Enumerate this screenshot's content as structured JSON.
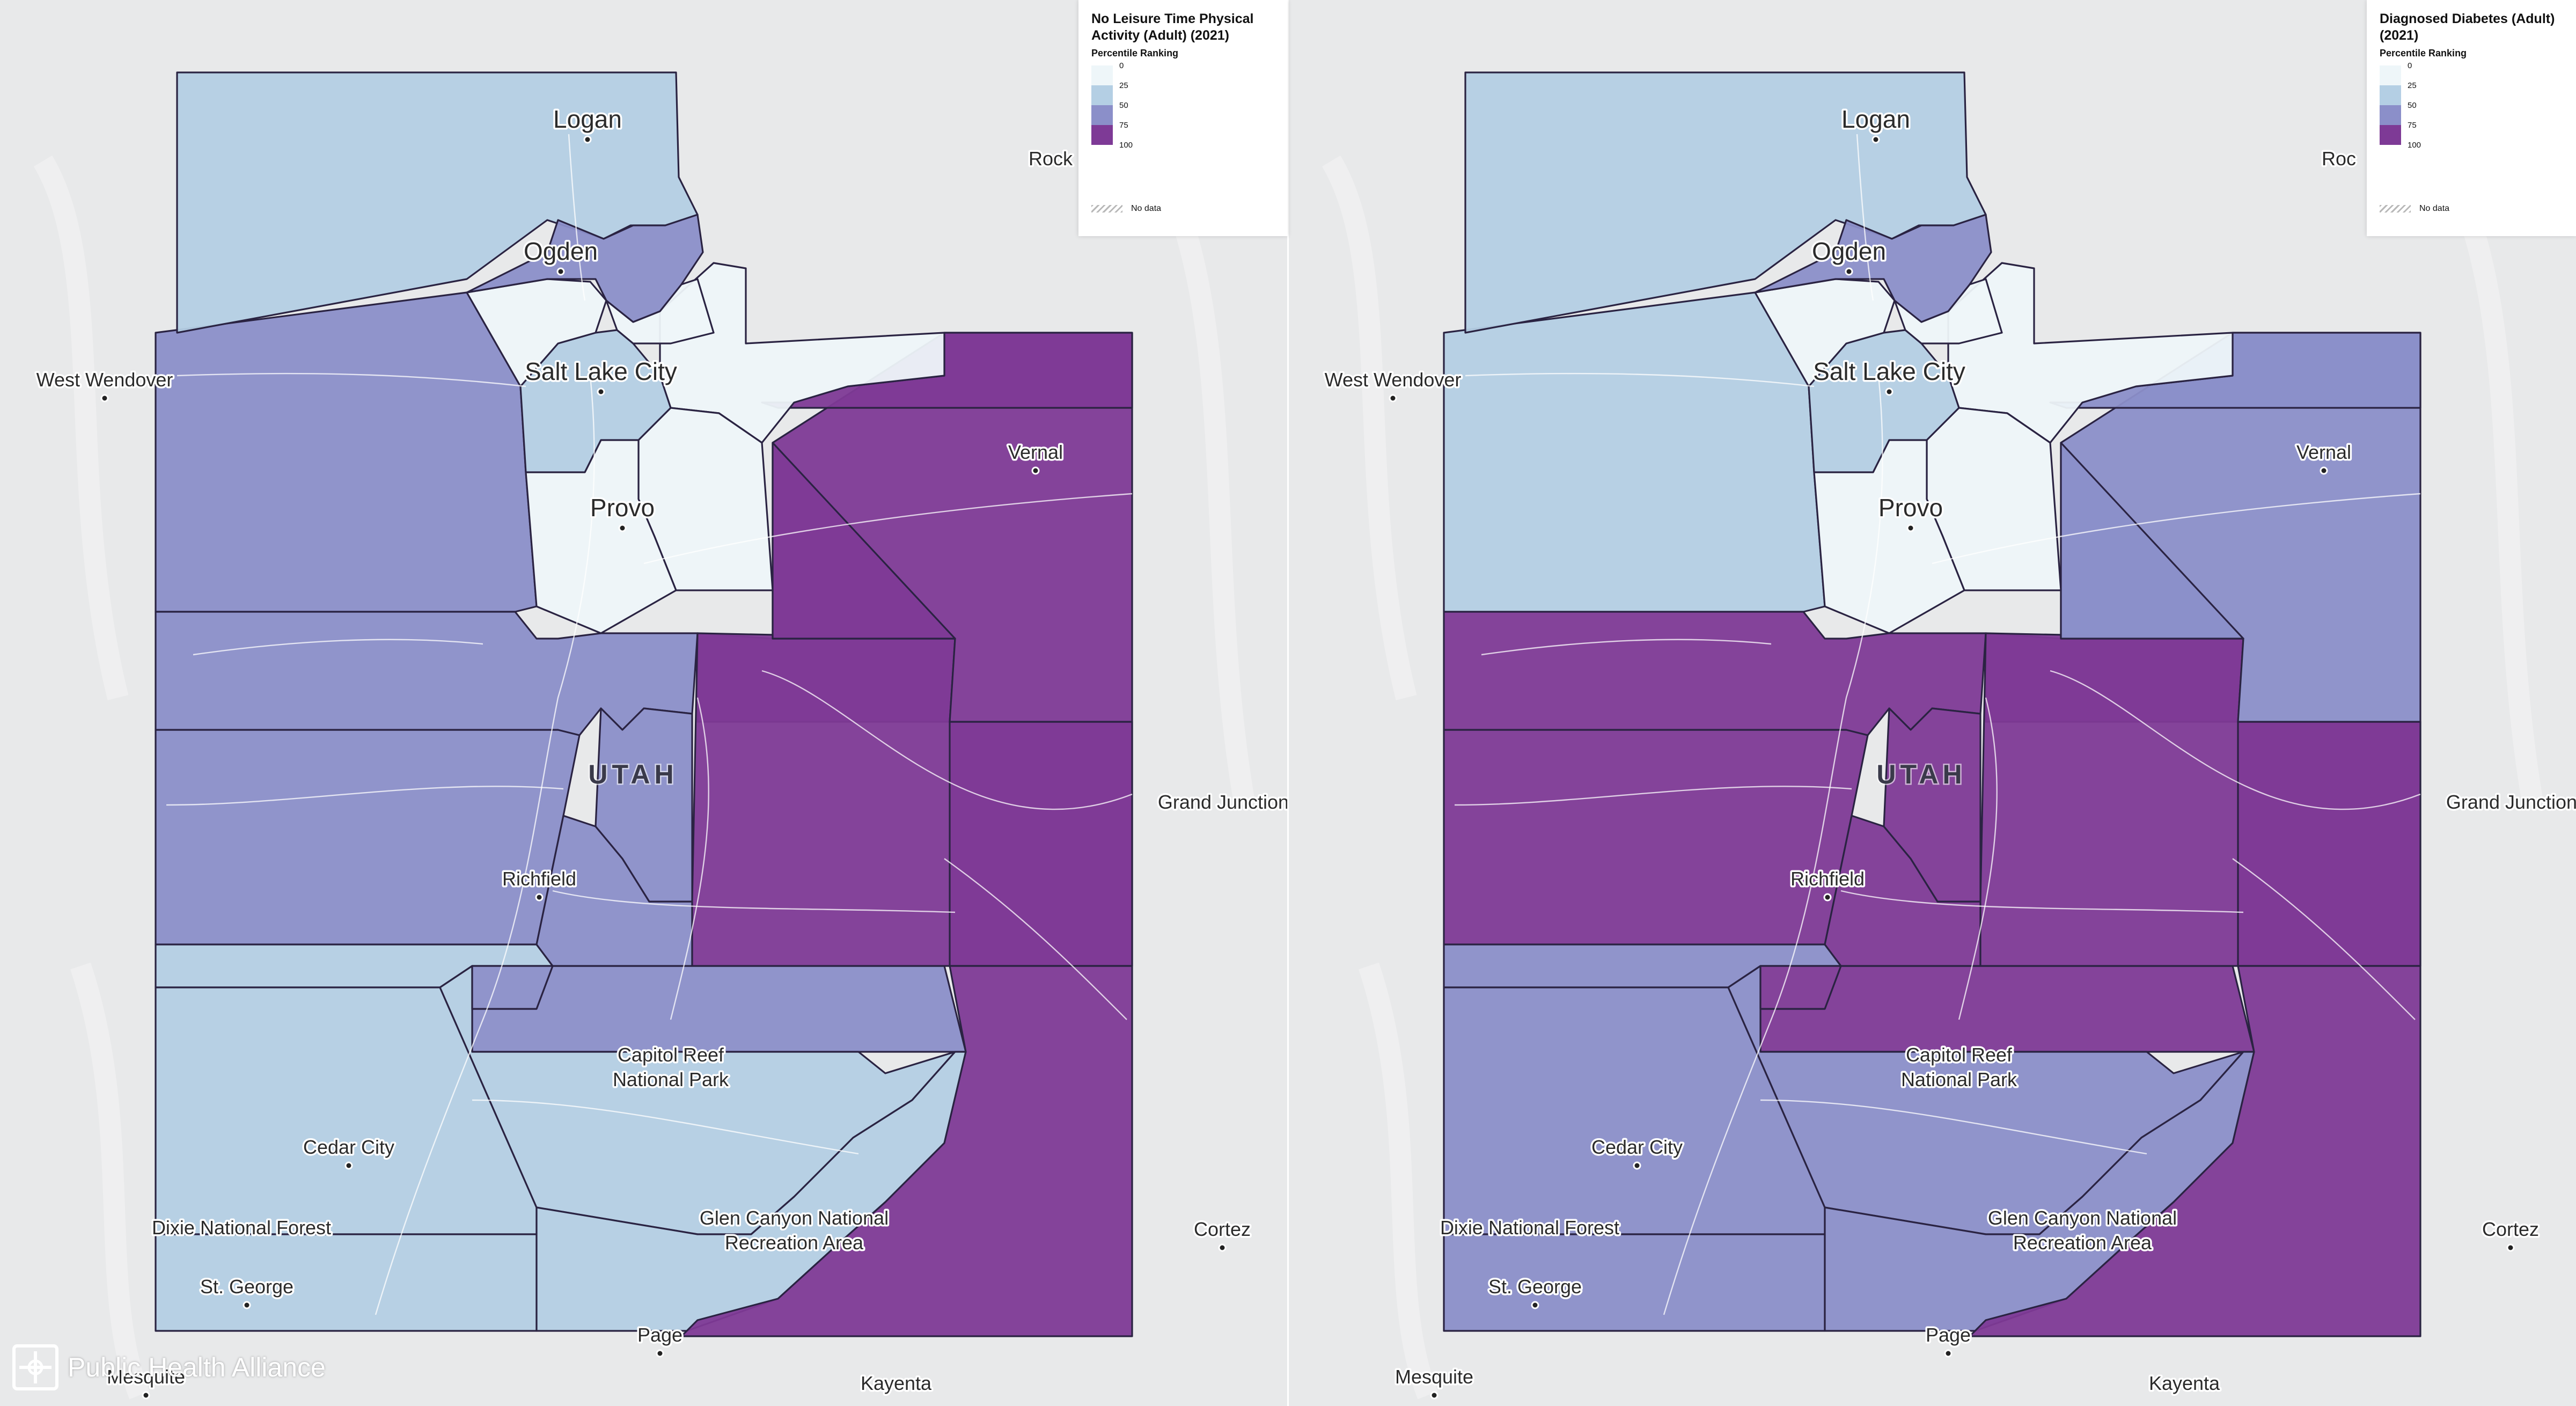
{
  "state_label": "UTAH",
  "color_scale": {
    "bins": [
      "#eef6f9",
      "#b4cfe4",
      "#8b8fc9",
      "#7e3a96"
    ],
    "tick_labels": [
      "0",
      "25",
      "50",
      "75",
      "100"
    ]
  },
  "maps": [
    {
      "legend": {
        "title": "No Leisure Time Physical Activity (Adult) (2021)",
        "subtitle": "Percentile Ranking",
        "no_data_label": "No data"
      },
      "county_bins": {
        "cache": 1,
        "box_elder": 1,
        "weber": 2,
        "davis": 0,
        "morgan": 0,
        "salt_lake": 1,
        "summit": 0,
        "wasatch": 0,
        "utah": 0,
        "daggett": 3,
        "uintah": 3,
        "duchesne": 3,
        "tooele": 2,
        "juab": 2,
        "millard": 2,
        "sanpete": 2,
        "sevier": 2,
        "carbon": 3,
        "emery": 3,
        "grand": 3,
        "beaver": 1,
        "piute": 2,
        "wayne": 2,
        "garfield": 1,
        "kane": 1,
        "iron": 1,
        "washington": 1,
        "san_juan": 3
      },
      "labels": [
        "Logan",
        "Ogden",
        "Salt Lake City",
        "Provo",
        "Vernal",
        "West Wendover",
        "Richfield",
        "Capitol Reef National Park",
        "Cedar City",
        "Dixie National Forest",
        "St. George",
        "Glen Canyon National Recreation Area",
        "Page",
        "Kayenta",
        "Mesquite",
        "Grand Junction",
        "Cortez",
        "Rock"
      ]
    },
    {
      "legend": {
        "title": "Diagnosed Diabetes (Adult) (2021)",
        "subtitle": "Percentile Ranking",
        "no_data_label": "No data"
      },
      "county_bins": {
        "cache": 1,
        "box_elder": 1,
        "weber": 2,
        "davis": 0,
        "morgan": 0,
        "salt_lake": 1,
        "summit": 0,
        "wasatch": 0,
        "utah": 0,
        "daggett": 2,
        "uintah": 2,
        "duchesne": 2,
        "tooele": 1,
        "juab": 3,
        "millard": 3,
        "sanpete": 3,
        "sevier": 3,
        "carbon": 3,
        "emery": 3,
        "grand": 3,
        "beaver": 2,
        "piute": 3,
        "wayne": 3,
        "garfield": 2,
        "kane": 2,
        "iron": 2,
        "washington": 2,
        "san_juan": 3
      },
      "labels": [
        "Logan",
        "Ogden",
        "Salt Lake City",
        "Provo",
        "Vernal",
        "West Wendover",
        "Richfield",
        "Capitol Reef National Park",
        "Cedar City",
        "Dixie National Forest",
        "St. George",
        "Glen Canyon National Recreation Area",
        "Page",
        "Kayenta",
        "Mesquite",
        "Grand Junction",
        "Cortez",
        "Roc"
      ]
    }
  ],
  "logo": {
    "text": "Public Health Alliance",
    "icon": "alliance-logo-icon"
  }
}
